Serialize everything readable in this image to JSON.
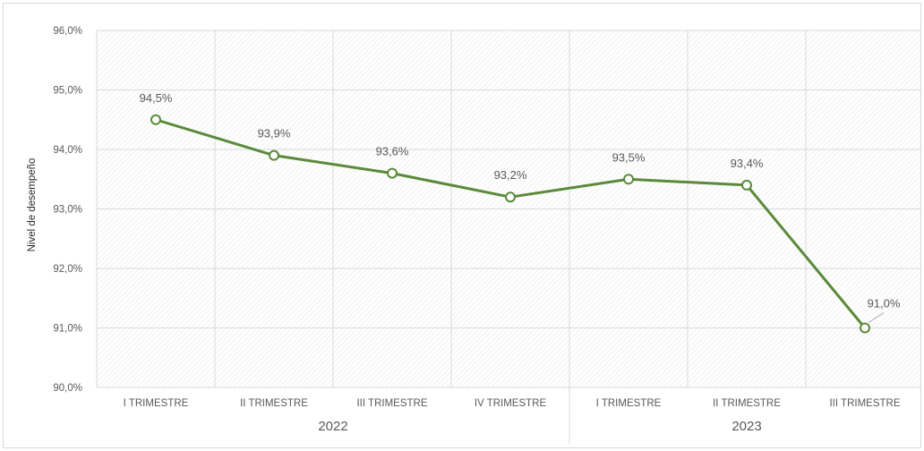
{
  "chart_data": {
    "type": "line",
    "ylabel": "Nivel de desempeño",
    "ylim": [
      90.0,
      96.0
    ],
    "yticks": [
      "90,0%",
      "91,0%",
      "92,0%",
      "93,0%",
      "94,0%",
      "95,0%",
      "96,0%"
    ],
    "groups": [
      {
        "label": "2022",
        "categories": [
          "I TRIMESTRE",
          "II TRIMESTRE",
          "III TRIMESTRE",
          "IV TRIMESTRE"
        ]
      },
      {
        "label": "2023",
        "categories": [
          "I TRIMESTRE",
          "II TRIMESTRE",
          "III TRIMESTRE"
        ]
      }
    ],
    "categories": [
      "I TRIMESTRE",
      "II TRIMESTRE",
      "III TRIMESTRE",
      "IV TRIMESTRE",
      "I TRIMESTRE",
      "II TRIMESTRE",
      "III TRIMESTRE"
    ],
    "values": [
      94.5,
      93.9,
      93.6,
      93.2,
      93.5,
      93.4,
      91.0
    ],
    "data_labels": [
      "94,5%",
      "93,9%",
      "93,6%",
      "93,2%",
      "93,5%",
      "93,4%",
      "91,0%"
    ],
    "grid": true,
    "legend": false,
    "colors": {
      "line": "#5a8a3a",
      "marker_fill": "#ffffff",
      "grid": "#d9d9d9",
      "text": "#595959"
    }
  }
}
